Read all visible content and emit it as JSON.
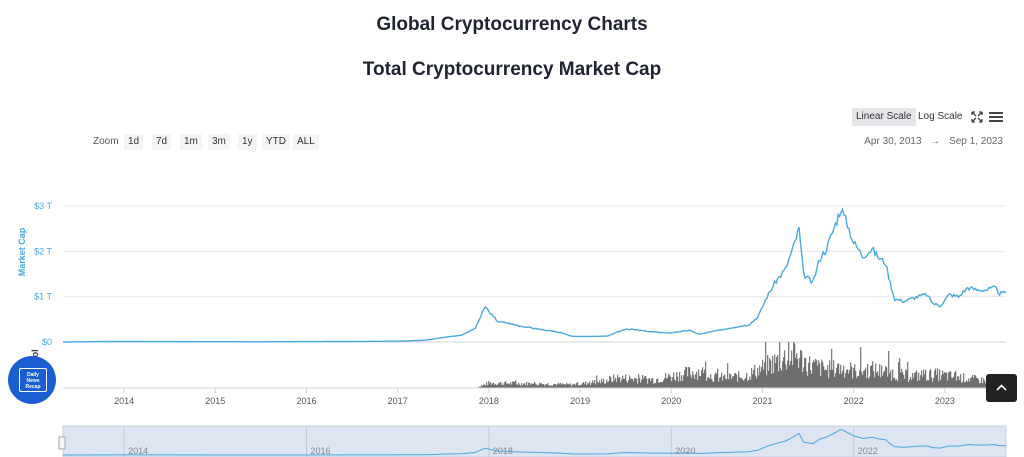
{
  "page": {
    "title": "Global Cryptocurrency Charts",
    "subtitle": "Total Cryptocurrency Market Cap"
  },
  "toolbar": {
    "linear_label": "Linear Scale",
    "log_label": "Log Scale",
    "fullscreen_icon": "expand-icon",
    "menu_icon": "hamburger-menu-icon"
  },
  "zoom": {
    "label": "Zoom",
    "options": [
      "1d",
      "7d",
      "1m",
      "3m",
      "1y",
      "YTD",
      "ALL"
    ]
  },
  "range": {
    "from": "Apr 30, 2013",
    "separator": "→",
    "to": "Sep 1, 2023"
  },
  "badge": {
    "text": "Daily News Recap",
    "line1": "Daily",
    "line2": "News",
    "line3": "Recap"
  },
  "scroll_top_icon": "chevron-up-icon",
  "chart_data": {
    "type": "line",
    "title": "Total Cryptocurrency Market Cap",
    "ylabel": "Market Cap",
    "y2label": "Vol",
    "yticks": [
      "$0",
      "$1 T",
      "$2 T",
      "$3 T"
    ],
    "ylim": [
      0,
      3
    ],
    "xticks": [
      "2014",
      "2015",
      "2016",
      "2017",
      "2018",
      "2019",
      "2020",
      "2021",
      "2022",
      "2023"
    ],
    "xlim": [
      2013.33,
      2023.67
    ],
    "navigator_ticks": [
      "2014",
      "2016",
      "2018",
      "2020",
      "2022"
    ],
    "line_color": "#4aa8e0",
    "volume_color": "#555555",
    "series": [
      {
        "name": "Market Cap",
        "unit": "trillion USD",
        "x": [
          2013.33,
          2013.9,
          2014.5,
          2015.5,
          2016.5,
          2017.0,
          2017.3,
          2017.5,
          2017.7,
          2017.85,
          2017.96,
          2018.03,
          2018.1,
          2018.2,
          2018.35,
          2018.5,
          2018.8,
          2018.9,
          2019.0,
          2019.3,
          2019.5,
          2019.6,
          2019.8,
          2020.0,
          2020.2,
          2020.3,
          2020.5,
          2020.7,
          2020.85,
          2020.95,
          2021.05,
          2021.15,
          2021.25,
          2021.34,
          2021.4,
          2021.45,
          2021.55,
          2021.63,
          2021.7,
          2021.8,
          2021.86,
          2021.93,
          2022.0,
          2022.1,
          2022.2,
          2022.28,
          2022.35,
          2022.4,
          2022.45,
          2022.55,
          2022.7,
          2022.8,
          2022.87,
          2022.95,
          2023.05,
          2023.15,
          2023.25,
          2023.35,
          2023.45,
          2023.55,
          2023.6,
          2023.67
        ],
        "y": [
          0.0,
          0.012,
          0.008,
          0.005,
          0.012,
          0.018,
          0.04,
          0.1,
          0.15,
          0.3,
          0.78,
          0.6,
          0.45,
          0.42,
          0.35,
          0.3,
          0.2,
          0.13,
          0.12,
          0.13,
          0.29,
          0.27,
          0.22,
          0.2,
          0.26,
          0.17,
          0.25,
          0.33,
          0.38,
          0.55,
          1.0,
          1.35,
          1.6,
          2.1,
          2.5,
          1.5,
          1.3,
          1.85,
          2.05,
          2.6,
          2.95,
          2.6,
          2.2,
          1.9,
          2.05,
          1.85,
          1.75,
          1.3,
          0.95,
          0.9,
          1.0,
          1.05,
          0.85,
          0.8,
          1.05,
          1.0,
          1.2,
          1.15,
          1.15,
          1.2,
          1.07,
          1.08
        ]
      }
    ],
    "volume_shape": {
      "x": [
        2013.33,
        2017.85,
        2018.0,
        2018.5,
        2018.9,
        2019.2,
        2019.4,
        2019.8,
        2020.0,
        2020.3,
        2020.5,
        2020.8,
        2021.0,
        2021.2,
        2021.35,
        2021.5,
        2021.7,
        2021.9,
        2022.0,
        2022.2,
        2022.4,
        2022.6,
        2022.9,
        2023.2,
        2023.5,
        2023.67
      ],
      "y": [
        0,
        0,
        0.15,
        0.13,
        0.1,
        0.18,
        0.3,
        0.25,
        0.35,
        0.5,
        0.3,
        0.35,
        0.6,
        0.85,
        1.0,
        0.7,
        0.55,
        0.6,
        0.5,
        0.55,
        0.45,
        0.35,
        0.4,
        0.3,
        0.2,
        0.15
      ]
    }
  }
}
